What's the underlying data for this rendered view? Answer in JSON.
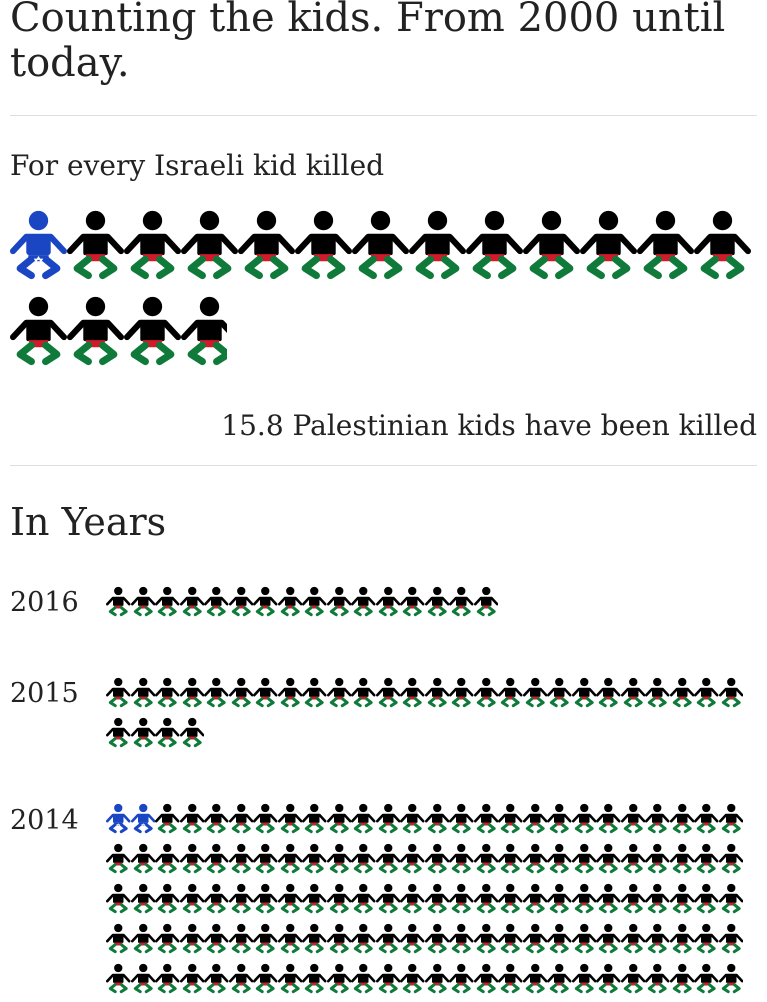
{
  "title": "Counting the kids. From 2000 until today.",
  "intro": "For every Israeli kid killed",
  "ratio_text": "15.8 Palestinian kids have been killed",
  "ratio_value": 15.8,
  "section_title": "In Years",
  "icons": {
    "israeli": "israeli-kid-icon",
    "palestinian": "palestinian-kid-icon"
  },
  "colors": {
    "israeli_blue": "#1a46c4",
    "palestinian_black": "#000000",
    "palestinian_red": "#d11a2a",
    "palestinian_green": "#0f7a3a"
  },
  "years": [
    {
      "year": "2016",
      "israeli": 0,
      "palestinian": 16
    },
    {
      "year": "2015",
      "israeli": 0,
      "palestinian": 30
    },
    {
      "year": "2014",
      "israeli": 2,
      "palestinian": 128
    }
  ]
}
